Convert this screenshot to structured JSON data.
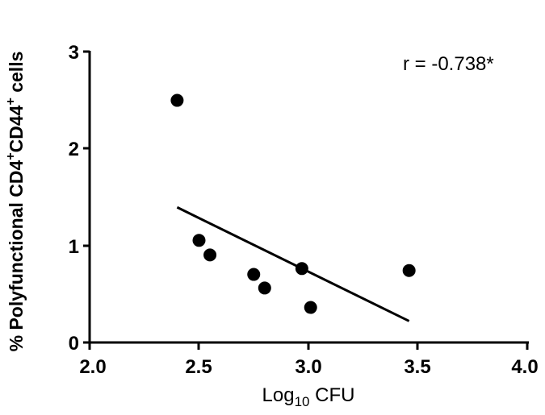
{
  "chart_data": {
    "type": "scatter",
    "title": "",
    "xlabel": "Log10 CFU",
    "xlabel_parts": {
      "base": "Log",
      "sub": "10",
      "rest": " CFU"
    },
    "ylabel": "% Polyfunctional CD4+CD44+ cells",
    "ylabel_parts": {
      "pre": "% Polyfunctional CD4",
      "sup1": "+",
      "mid": "CD44",
      "sup2": "+",
      "post": "  cells"
    },
    "xlim": [
      2.0,
      4.0
    ],
    "ylim": [
      0,
      3
    ],
    "xticks": [
      "2.0",
      "2.5",
      "3.0",
      "3.5",
      "4.0"
    ],
    "yticks": [
      "0",
      "1",
      "2",
      "3"
    ],
    "grid": false,
    "legend": null,
    "points": [
      {
        "x": 2.4,
        "y": 2.49
      },
      {
        "x": 2.5,
        "y": 1.05
      },
      {
        "x": 2.55,
        "y": 0.9
      },
      {
        "x": 2.75,
        "y": 0.7
      },
      {
        "x": 2.8,
        "y": 0.56
      },
      {
        "x": 2.97,
        "y": 0.76
      },
      {
        "x": 3.01,
        "y": 0.36
      },
      {
        "x": 3.46,
        "y": 0.74
      }
    ],
    "regression_line": {
      "x1": 2.4,
      "y1": 1.39,
      "x2": 3.46,
      "y2": 0.22
    },
    "annotations": [
      {
        "text": "r = -0.738*"
      }
    ]
  },
  "labels": {
    "annotation": "r = -0.738*",
    "xtick_0": "2.0",
    "xtick_1": "2.5",
    "xtick_2": "3.0",
    "xtick_3": "3.5",
    "xtick_4": "4.0",
    "ytick_0": "0",
    "ytick_1": "1",
    "ytick_2": "2",
    "ytick_3": "3",
    "x_base": "Log",
    "x_sub": "10",
    "x_rest": " CFU",
    "y_pre": "% Polyfunctional CD4",
    "y_sup1": "+",
    "y_mid": "CD44",
    "y_sup2": "+",
    "y_post": "  cells"
  }
}
